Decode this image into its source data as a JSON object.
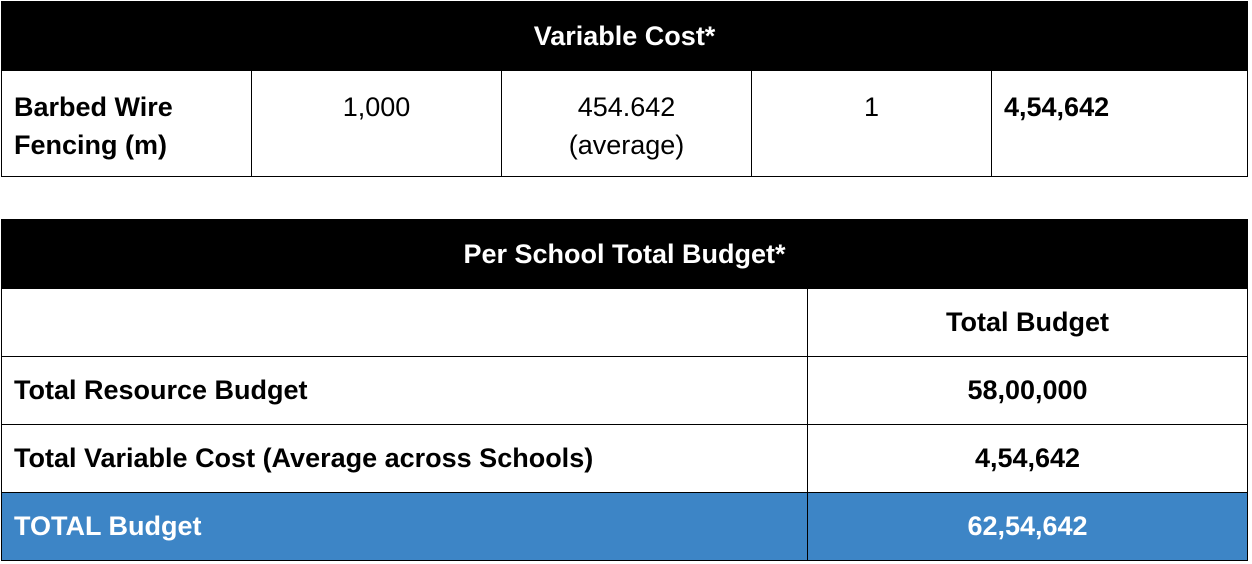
{
  "variable_cost": {
    "title": "Variable Cost*",
    "row": {
      "item_line1": "Barbed Wire",
      "item_line2": "Fencing  (m)",
      "quantity": "1,000",
      "rate_line1": "454.642",
      "rate_line2": "(average)",
      "units": "1",
      "total": "4,54,642"
    }
  },
  "school_budget": {
    "title": "Per School Total Budget*",
    "column_header": "Total Budget",
    "rows": [
      {
        "label": "Total Resource Budget",
        "value": "58,00,000"
      },
      {
        "label": "Total Variable Cost (Average across Schools)",
        "value": "4,54,642"
      },
      {
        "label": "TOTAL Budget",
        "value": "62,54,642"
      }
    ]
  },
  "colors": {
    "header_bg": "#000000",
    "total_row_bg": "#3d85c6"
  }
}
